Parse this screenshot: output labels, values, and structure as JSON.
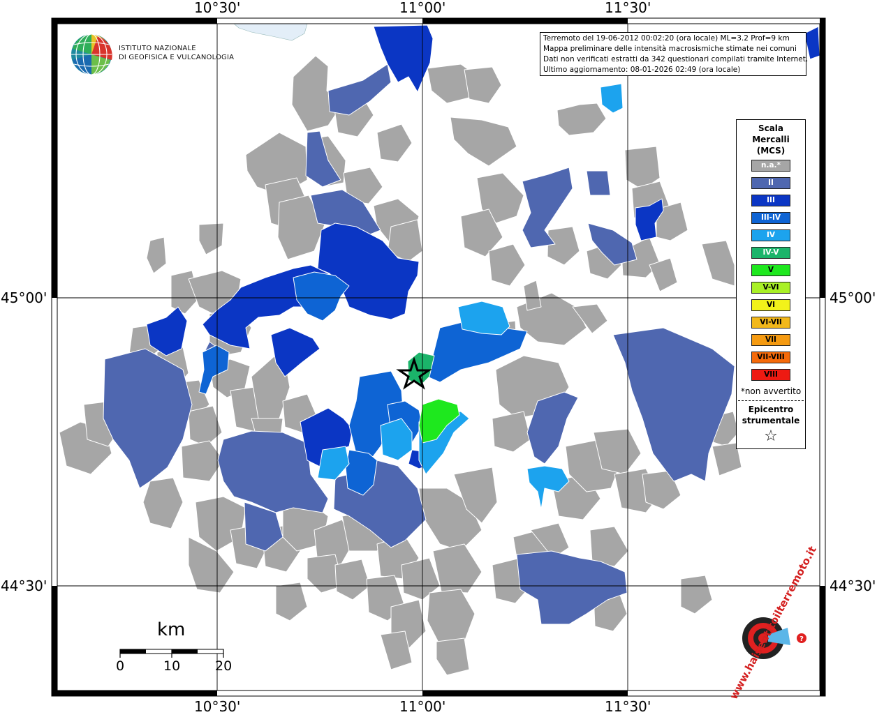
{
  "info": {
    "line1": "Terremoto del 19-06-2012 00:02:20 (ora locale) ML=3.2 Prof=9 km",
    "line2": "Mappa preliminare delle intensità macrosismiche stimate nei comuni",
    "line3": "Dati non verificati estratti da 342 questionari compilati tramite Internet.",
    "line4": "Ultimo aggiornamento: 08-01-2026 02:49 (ora locale)"
  },
  "logo": {
    "line1": "ISTITUTO NAZIONALE",
    "line2": "DI GEOFISICA E VULCANOLOGIA"
  },
  "ticks": {
    "top": [
      "10°30'",
      "11°00'",
      "11°30'"
    ],
    "bottom": [
      "10°30'",
      "11°00'",
      "11°30'"
    ],
    "left": [
      "45°00'",
      "44°30'"
    ],
    "right": [
      "45°00'",
      "44°30'"
    ]
  },
  "scalebar": {
    "unit": "km",
    "labels": [
      "0",
      "10",
      "20"
    ]
  },
  "legend": {
    "title1": "Scala",
    "title2": "Mercalli",
    "title3": "(MCS)",
    "items": [
      {
        "label": "n.a.*",
        "color": "#a6a6a6",
        "text_color": "#ffffff"
      },
      {
        "label": "II",
        "color": "#4f67b0",
        "text_color": "#ffffff"
      },
      {
        "label": "III",
        "color": "#0b36c4",
        "text_color": "#ffffff"
      },
      {
        "label": "III-IV",
        "color": "#0e64d4",
        "text_color": "#ffffff"
      },
      {
        "label": "IV",
        "color": "#1ca3ee",
        "text_color": "#ffffff"
      },
      {
        "label": "IV-V",
        "color": "#1bb46a",
        "text_color": "#ffffff"
      },
      {
        "label": "V",
        "color": "#1ee81e",
        "text_color": "#000000"
      },
      {
        "label": "V-VI",
        "color": "#a9f026",
        "text_color": "#000000"
      },
      {
        "label": "VI",
        "color": "#f2f21a",
        "text_color": "#000000"
      },
      {
        "label": "VI-VII",
        "color": "#f2b81a",
        "text_color": "#000000"
      },
      {
        "label": "VII",
        "color": "#f59a10",
        "text_color": "#000000"
      },
      {
        "label": "VII-VIII",
        "color": "#f56a0a",
        "text_color": "#000000"
      },
      {
        "label": "VIII",
        "color": "#ee1a12",
        "text_color": "#000000"
      }
    ],
    "note": "*non avvertito",
    "epi1": "Epicentro",
    "epi2": "strumentale",
    "epi_symbol": "☆"
  },
  "watermark": {
    "text": "www.haisentitoilterremoto.it"
  }
}
